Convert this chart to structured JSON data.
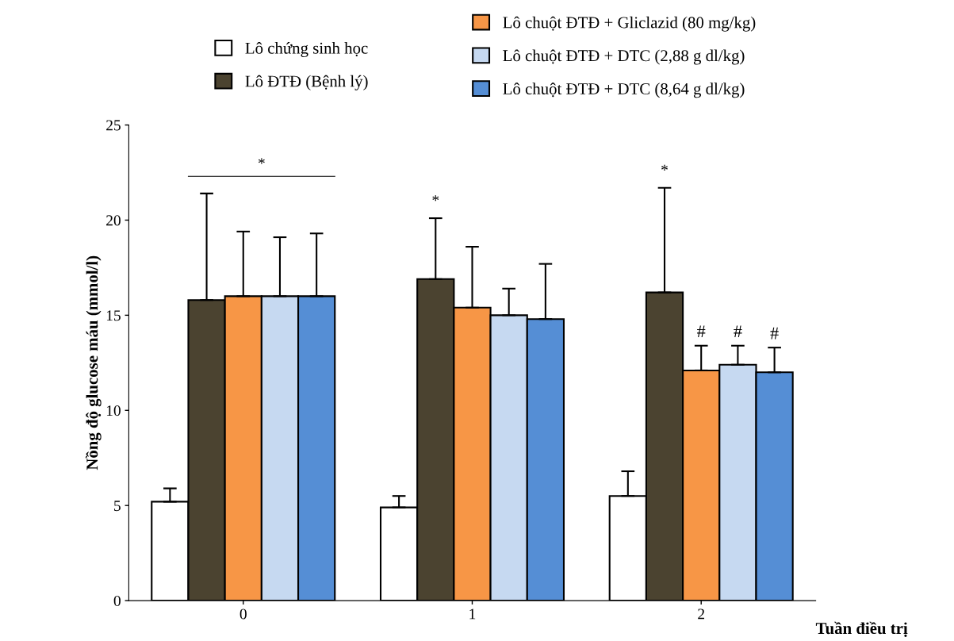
{
  "chart_data": {
    "type": "bar",
    "xlabel": "Tuần điều trị",
    "ylabel": "Nồng độ glucose máu (mmol/l)",
    "categories": [
      "0",
      "1",
      "2"
    ],
    "ylim": [
      0,
      25
    ],
    "yticks": [
      0,
      5,
      10,
      15,
      20,
      25
    ],
    "grid": false,
    "legend": "top",
    "series": [
      {
        "name": "Lô chứng sinh học",
        "color": "#ffffff",
        "values": [
          5.2,
          4.9,
          5.5
        ],
        "errors": [
          [
            5.2,
            5.9
          ],
          [
            4.9,
            5.5
          ],
          [
            5.5,
            6.8
          ]
        ]
      },
      {
        "name": "Lô ĐTĐ (Bệnh lý)",
        "color": "#4b4330",
        "values": [
          15.8,
          16.9,
          16.2
        ],
        "errors": [
          [
            15.8,
            21.4
          ],
          [
            16.9,
            20.1
          ],
          [
            16.2,
            21.7
          ]
        ]
      },
      {
        "name": "Lô chuột ĐTĐ + Gliclazid (80 mg/kg)",
        "color": "#f79646",
        "values": [
          16.0,
          15.4,
          12.1
        ],
        "errors": [
          [
            16.0,
            19.4
          ],
          [
            15.4,
            18.6
          ],
          [
            12.1,
            13.4
          ]
        ],
        "value_labels": [
          null,
          null,
          "#"
        ]
      },
      {
        "name": "Lô chuột ĐTĐ + DTC (2,88 g dl/kg)",
        "color": "#c6d9f1",
        "values": [
          16.0,
          15.0,
          12.4
        ],
        "errors": [
          [
            16.0,
            19.1
          ],
          [
            15.0,
            16.4
          ],
          [
            12.4,
            13.4
          ]
        ],
        "value_labels": [
          null,
          null,
          "#"
        ]
      },
      {
        "name": "Lô chuột ĐTĐ + DTC (8,64 g dl/kg)",
        "color": "#558ed5",
        "values": [
          16.0,
          14.8,
          12.0
        ],
        "errors": [
          [
            16.0,
            19.3
          ],
          [
            14.8,
            17.7
          ],
          [
            12.0,
            13.3
          ]
        ],
        "value_labels": [
          null,
          null,
          "#"
        ]
      }
    ],
    "annotations": [
      "*",
      "*",
      "*"
    ]
  }
}
